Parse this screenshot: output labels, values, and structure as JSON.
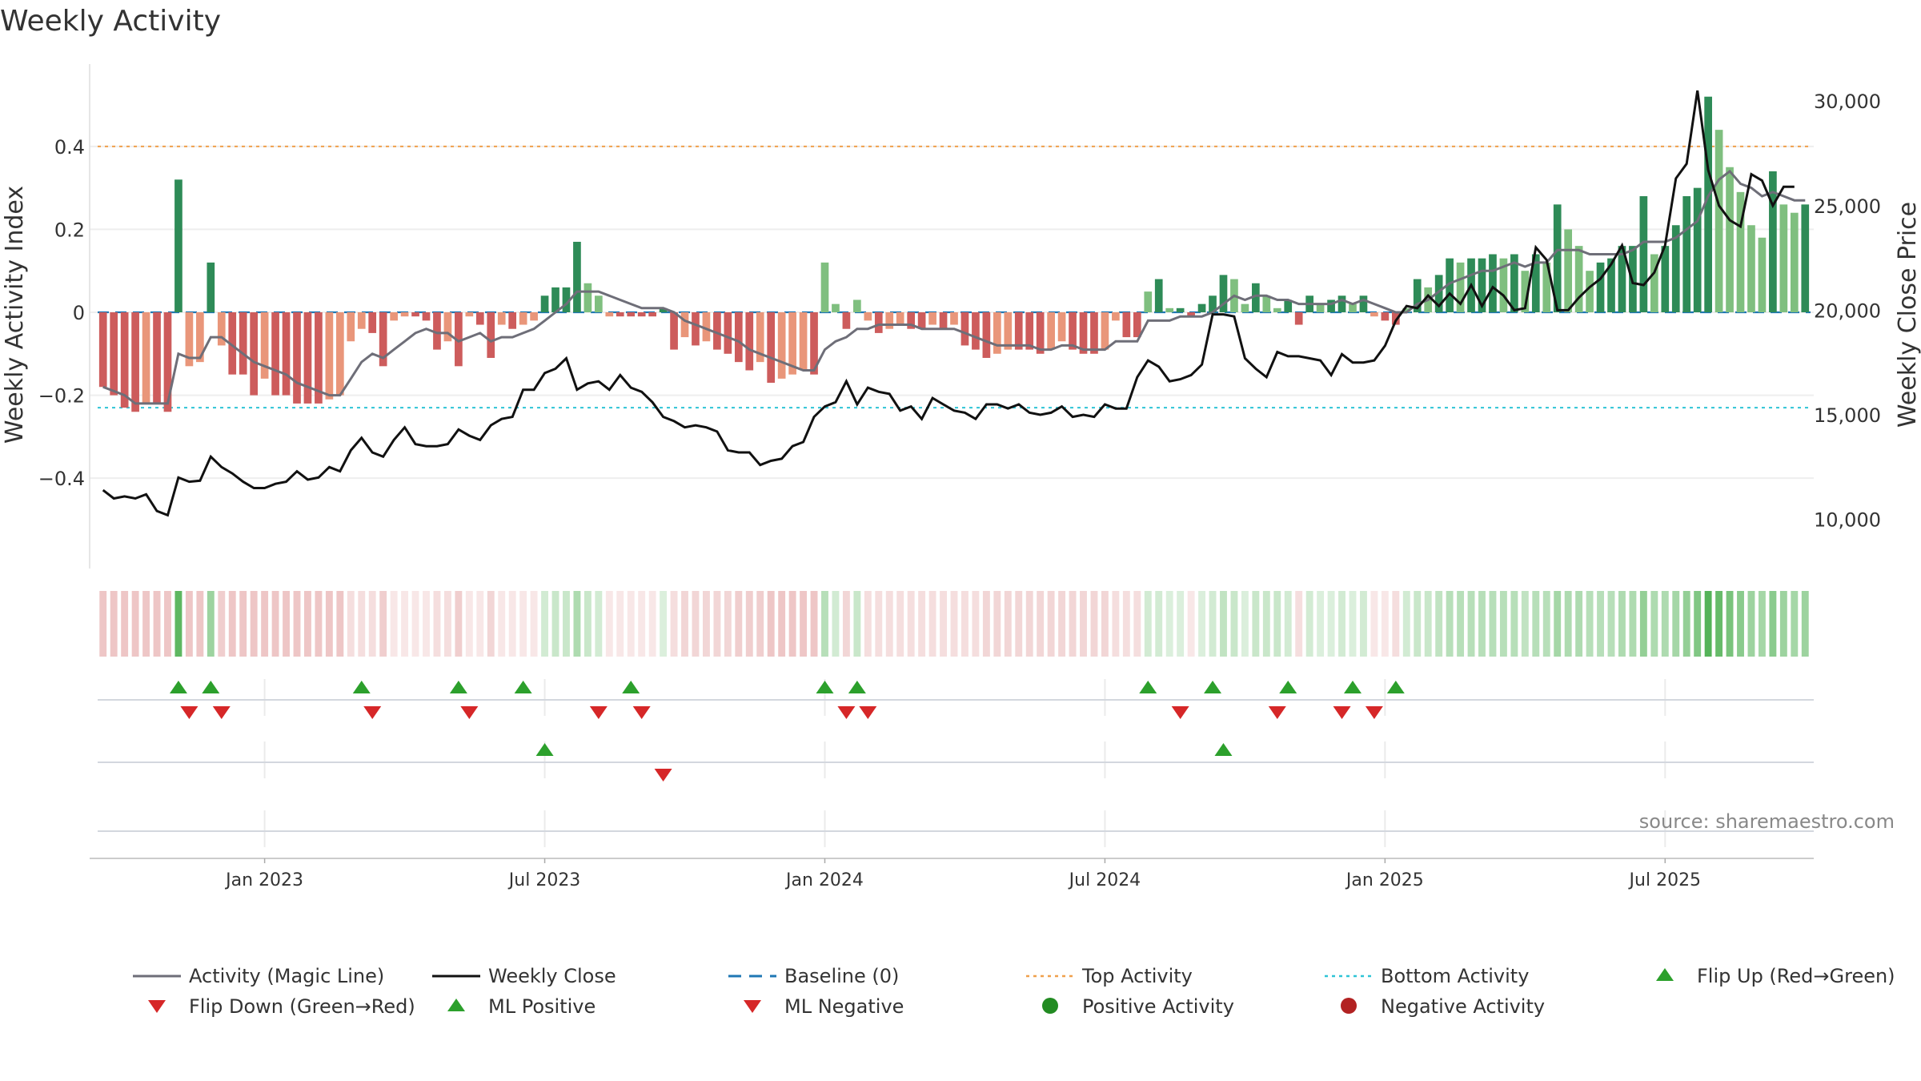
{
  "chart_data": {
    "type": "bar",
    "title": "Weekly Activity",
    "ylabel_left": "Weekly Activity Index",
    "ylabel_right": "Weekly Close Price",
    "ylim_left": [
      -0.56,
      0.56
    ],
    "ylim_right": [
      8800,
      31000
    ],
    "left_ticks": [
      {
        "value": 0.4,
        "label": "0.4"
      },
      {
        "value": 0.2,
        "label": "0.2"
      },
      {
        "value": 0,
        "label": "0"
      },
      {
        "value": -0.2,
        "label": "−0.2"
      },
      {
        "value": -0.4,
        "label": "−0.4"
      }
    ],
    "right_ticks": [
      {
        "value": 30000,
        "label": "30,000"
      },
      {
        "value": 25000,
        "label": "25,000"
      },
      {
        "value": 20000,
        "label": "20,000"
      },
      {
        "value": 15000,
        "label": "15,000"
      },
      {
        "value": 10000,
        "label": "10,000"
      }
    ],
    "top_activity": 0.4,
    "bottom_activity": -0.23,
    "x_ticks": [
      {
        "week": 15,
        "label": "Jan 2023"
      },
      {
        "week": 41,
        "label": "Jul 2023"
      },
      {
        "week": 67,
        "label": "Jan 2024"
      },
      {
        "week": 93,
        "label": "Jul 2024"
      },
      {
        "week": 119,
        "label": "Jan 2025"
      },
      {
        "week": 145,
        "label": "Jul 2025"
      }
    ],
    "activity": [
      -0.18,
      -0.2,
      -0.23,
      -0.24,
      -0.22,
      -0.22,
      -0.24,
      0.32,
      -0.13,
      -0.12,
      0.12,
      -0.08,
      -0.15,
      -0.15,
      -0.2,
      -0.16,
      -0.2,
      -0.2,
      -0.22,
      -0.22,
      -0.22,
      -0.21,
      -0.2,
      -0.07,
      -0.04,
      -0.05,
      -0.13,
      -0.02,
      -0.01,
      -0.01,
      -0.02,
      -0.09,
      -0.07,
      -0.13,
      -0.01,
      -0.03,
      -0.11,
      -0.03,
      -0.04,
      -0.03,
      -0.02,
      0.04,
      0.06,
      0.06,
      0.17,
      0.07,
      0.04,
      -0.01,
      -0.01,
      -0.01,
      -0.01,
      -0.01,
      0.01,
      -0.09,
      -0.06,
      -0.08,
      -0.07,
      -0.09,
      -0.1,
      -0.12,
      -0.14,
      -0.12,
      -0.17,
      -0.16,
      -0.15,
      -0.14,
      -0.15,
      0.12,
      0.02,
      -0.04,
      0.03,
      -0.02,
      -0.05,
      -0.04,
      -0.03,
      -0.04,
      -0.04,
      -0.03,
      -0.04,
      -0.03,
      -0.08,
      -0.09,
      -0.11,
      -0.1,
      -0.09,
      -0.09,
      -0.09,
      -0.1,
      -0.09,
      -0.07,
      -0.09,
      -0.1,
      -0.1,
      -0.09,
      -0.02,
      -0.06,
      -0.06,
      0.05,
      0.08,
      0.01,
      0.01,
      -0.01,
      0.02,
      0.04,
      0.09,
      0.08,
      0.02,
      0.07,
      0.04,
      0.01,
      0.03,
      -0.03,
      0.04,
      0.02,
      0.03,
      0.04,
      0.02,
      0.04,
      -0.01,
      -0.02,
      -0.03,
      0.01,
      0.08,
      0.06,
      0.09,
      0.13,
      0.12,
      0.13,
      0.13,
      0.14,
      0.13,
      0.14,
      0.1,
      0.14,
      0.12,
      0.26,
      0.2,
      0.16,
      0.1,
      0.12,
      0.13,
      0.16,
      0.16,
      0.28,
      0.14,
      0.16,
      0.21,
      0.28,
      0.3,
      0.52,
      0.44,
      0.35,
      0.29,
      0.21,
      0.18,
      0.34,
      0.26,
      0.24,
      0.26
    ],
    "magic_line": [
      -0.18,
      -0.19,
      -0.2,
      -0.22,
      -0.22,
      -0.22,
      -0.22,
      -0.1,
      -0.11,
      -0.11,
      -0.06,
      -0.06,
      -0.08,
      -0.1,
      -0.12,
      -0.13,
      -0.14,
      -0.15,
      -0.17,
      -0.18,
      -0.19,
      -0.2,
      -0.2,
      -0.16,
      -0.12,
      -0.1,
      -0.11,
      -0.09,
      -0.07,
      -0.05,
      -0.04,
      -0.05,
      -0.05,
      -0.07,
      -0.06,
      -0.05,
      -0.07,
      -0.06,
      -0.06,
      -0.05,
      -0.04,
      -0.02,
      0.0,
      0.02,
      0.05,
      0.05,
      0.05,
      0.04,
      0.03,
      0.02,
      0.01,
      0.01,
      0.01,
      0.0,
      -0.02,
      -0.03,
      -0.04,
      -0.05,
      -0.06,
      -0.07,
      -0.09,
      -0.1,
      -0.11,
      -0.12,
      -0.13,
      -0.14,
      -0.14,
      -0.09,
      -0.07,
      -0.06,
      -0.04,
      -0.04,
      -0.03,
      -0.03,
      -0.03,
      -0.03,
      -0.04,
      -0.04,
      -0.04,
      -0.04,
      -0.05,
      -0.06,
      -0.07,
      -0.08,
      -0.08,
      -0.08,
      -0.08,
      -0.09,
      -0.09,
      -0.08,
      -0.08,
      -0.09,
      -0.09,
      -0.09,
      -0.07,
      -0.07,
      -0.07,
      -0.02,
      -0.02,
      -0.02,
      -0.01,
      -0.01,
      -0.01,
      0.0,
      0.02,
      0.04,
      0.03,
      0.04,
      0.04,
      0.03,
      0.03,
      0.02,
      0.02,
      0.02,
      0.02,
      0.03,
      0.02,
      0.03,
      0.02,
      0.01,
      0.0,
      0.0,
      0.02,
      0.03,
      0.05,
      0.07,
      0.08,
      0.09,
      0.1,
      0.1,
      0.11,
      0.12,
      0.11,
      0.12,
      0.12,
      0.15,
      0.15,
      0.15,
      0.14,
      0.14,
      0.14,
      0.14,
      0.15,
      0.17,
      0.17,
      0.17,
      0.18,
      0.2,
      0.22,
      0.28,
      0.32,
      0.34,
      0.31,
      0.3,
      0.28,
      0.29,
      0.28,
      0.27,
      0.27
    ],
    "weekly_close": [
      11400,
      11000,
      11100,
      11000,
      11200,
      10400,
      10200,
      12000,
      11800,
      11850,
      13000,
      12500,
      12200,
      11800,
      11500,
      11500,
      11700,
      11800,
      12300,
      11900,
      12000,
      12500,
      12300,
      13300,
      13900,
      13200,
      13000,
      13800,
      14400,
      13600,
      13500,
      13500,
      13600,
      14300,
      14000,
      13800,
      14500,
      14800,
      14900,
      16200,
      16200,
      17000,
      17200,
      17700,
      16200,
      16500,
      16600,
      16200,
      16900,
      16300,
      16100,
      15600,
      14900,
      14700,
      14400,
      14500,
      14400,
      14200,
      13300,
      13200,
      13200,
      12600,
      12800,
      12900,
      13500,
      13700,
      14900,
      15400,
      15600,
      16600,
      15500,
      16300,
      16100,
      16000,
      15200,
      15400,
      14800,
      15800,
      15500,
      15200,
      15100,
      14800,
      15500,
      15500,
      15300,
      15500,
      15100,
      15000,
      15100,
      15400,
      14900,
      15000,
      14900,
      15500,
      15300,
      15300,
      16800,
      17600,
      17300,
      16600,
      16700,
      16900,
      17400,
      19800,
      19800,
      19700,
      17700,
      17200,
      16800,
      18000,
      17800,
      17800,
      17700,
      17600,
      16900,
      17900,
      17500,
      17500,
      17600,
      18300,
      19500,
      20200,
      20100,
      20700,
      20200,
      20800,
      20300,
      21200,
      20200,
      21100,
      20700,
      20000,
      20100,
      23000,
      22400,
      20000,
      20000,
      20600,
      21100,
      21500,
      22200,
      23100,
      21300,
      21200,
      21800,
      23100,
      26300,
      27000,
      30500,
      26700,
      25000,
      24300,
      24000,
      26500,
      26200,
      25000,
      25900,
      25900
    ],
    "ribbon_intensity": [
      0.35,
      0.35,
      0.35,
      0.35,
      0.35,
      0.35,
      0.35,
      0.9,
      0.35,
      0.35,
      0.55,
      0.3,
      0.35,
      0.35,
      0.35,
      0.35,
      0.35,
      0.35,
      0.35,
      0.35,
      0.35,
      0.35,
      0.35,
      0.2,
      0.2,
      0.2,
      0.3,
      0.15,
      0.15,
      0.15,
      0.15,
      0.2,
      0.2,
      0.3,
      0.15,
      0.15,
      0.25,
      0.15,
      0.15,
      0.15,
      0.15,
      0.25,
      0.3,
      0.3,
      0.45,
      0.3,
      0.25,
      0.15,
      0.15,
      0.15,
      0.15,
      0.15,
      0.2,
      0.2,
      0.25,
      0.25,
      0.25,
      0.25,
      0.25,
      0.3,
      0.3,
      0.3,
      0.35,
      0.35,
      0.35,
      0.35,
      0.35,
      0.4,
      0.25,
      0.25,
      0.3,
      0.2,
      0.2,
      0.2,
      0.2,
      0.2,
      0.2,
      0.2,
      0.2,
      0.2,
      0.2,
      0.2,
      0.25,
      0.25,
      0.25,
      0.25,
      0.25,
      0.25,
      0.25,
      0.25,
      0.25,
      0.25,
      0.25,
      0.25,
      0.2,
      0.2,
      0.2,
      0.25,
      0.25,
      0.2,
      0.2,
      0.15,
      0.2,
      0.25,
      0.35,
      0.3,
      0.2,
      0.3,
      0.3,
      0.3,
      0.25,
      0.2,
      0.25,
      0.2,
      0.2,
      0.25,
      0.2,
      0.25,
      0.15,
      0.15,
      0.2,
      0.25,
      0.3,
      0.3,
      0.35,
      0.4,
      0.4,
      0.4,
      0.4,
      0.4,
      0.4,
      0.4,
      0.35,
      0.4,
      0.4,
      0.5,
      0.45,
      0.45,
      0.4,
      0.4,
      0.4,
      0.45,
      0.45,
      0.6,
      0.45,
      0.45,
      0.5,
      0.6,
      0.7,
      0.95,
      0.85,
      0.75,
      0.65,
      0.55,
      0.5,
      0.65,
      0.55,
      0.5,
      0.55
    ],
    "flip_up_weeks": [
      7,
      10,
      24,
      33,
      39,
      49,
      67,
      70,
      97,
      103,
      110,
      116,
      120
    ],
    "flip_down_weeks": [
      8,
      11,
      25,
      34,
      46,
      50,
      69,
      71,
      100,
      109,
      115,
      118
    ],
    "ml_positive_weeks": [
      41,
      104
    ],
    "ml_negative_weeks": [
      52
    ],
    "legend": [
      {
        "label": "Activity (Magic Line)",
        "marker": "line",
        "color": "#6e6e78"
      },
      {
        "label": "Weekly Close",
        "marker": "line",
        "color": "#111111"
      },
      {
        "label": "Baseline (0)",
        "marker": "dash",
        "color": "#1f77b4"
      },
      {
        "label": "Top Activity",
        "marker": "dot",
        "color": "#f0a04b"
      },
      {
        "label": "Bottom Activity",
        "marker": "dot",
        "color": "#2ec4d6"
      },
      {
        "label": "Flip Up (Red→Green)",
        "marker": "tri-up",
        "color": "#2ca02c"
      },
      {
        "label": "Flip Down (Green→Red)",
        "marker": "tri-down",
        "color": "#d62728"
      },
      {
        "label": "ML Positive",
        "marker": "tri-up",
        "color": "#2ca02c"
      },
      {
        "label": "ML Negative",
        "marker": "tri-down",
        "color": "#d62728"
      },
      {
        "label": "Positive Activity",
        "marker": "circle",
        "color": "#228b22"
      },
      {
        "label": "Negative Activity",
        "marker": "circle",
        "color": "#b22222"
      }
    ],
    "colors": {
      "pos_strong": "#2e8b57",
      "pos_light": "#7fbf7f",
      "neg_strong": "#cd5c5c",
      "neg_light": "#e9967a",
      "ribbon_pos": "#4caf50",
      "ribbon_neg": "#cd5c5c"
    }
  },
  "source": "source: sharemaestro.com"
}
